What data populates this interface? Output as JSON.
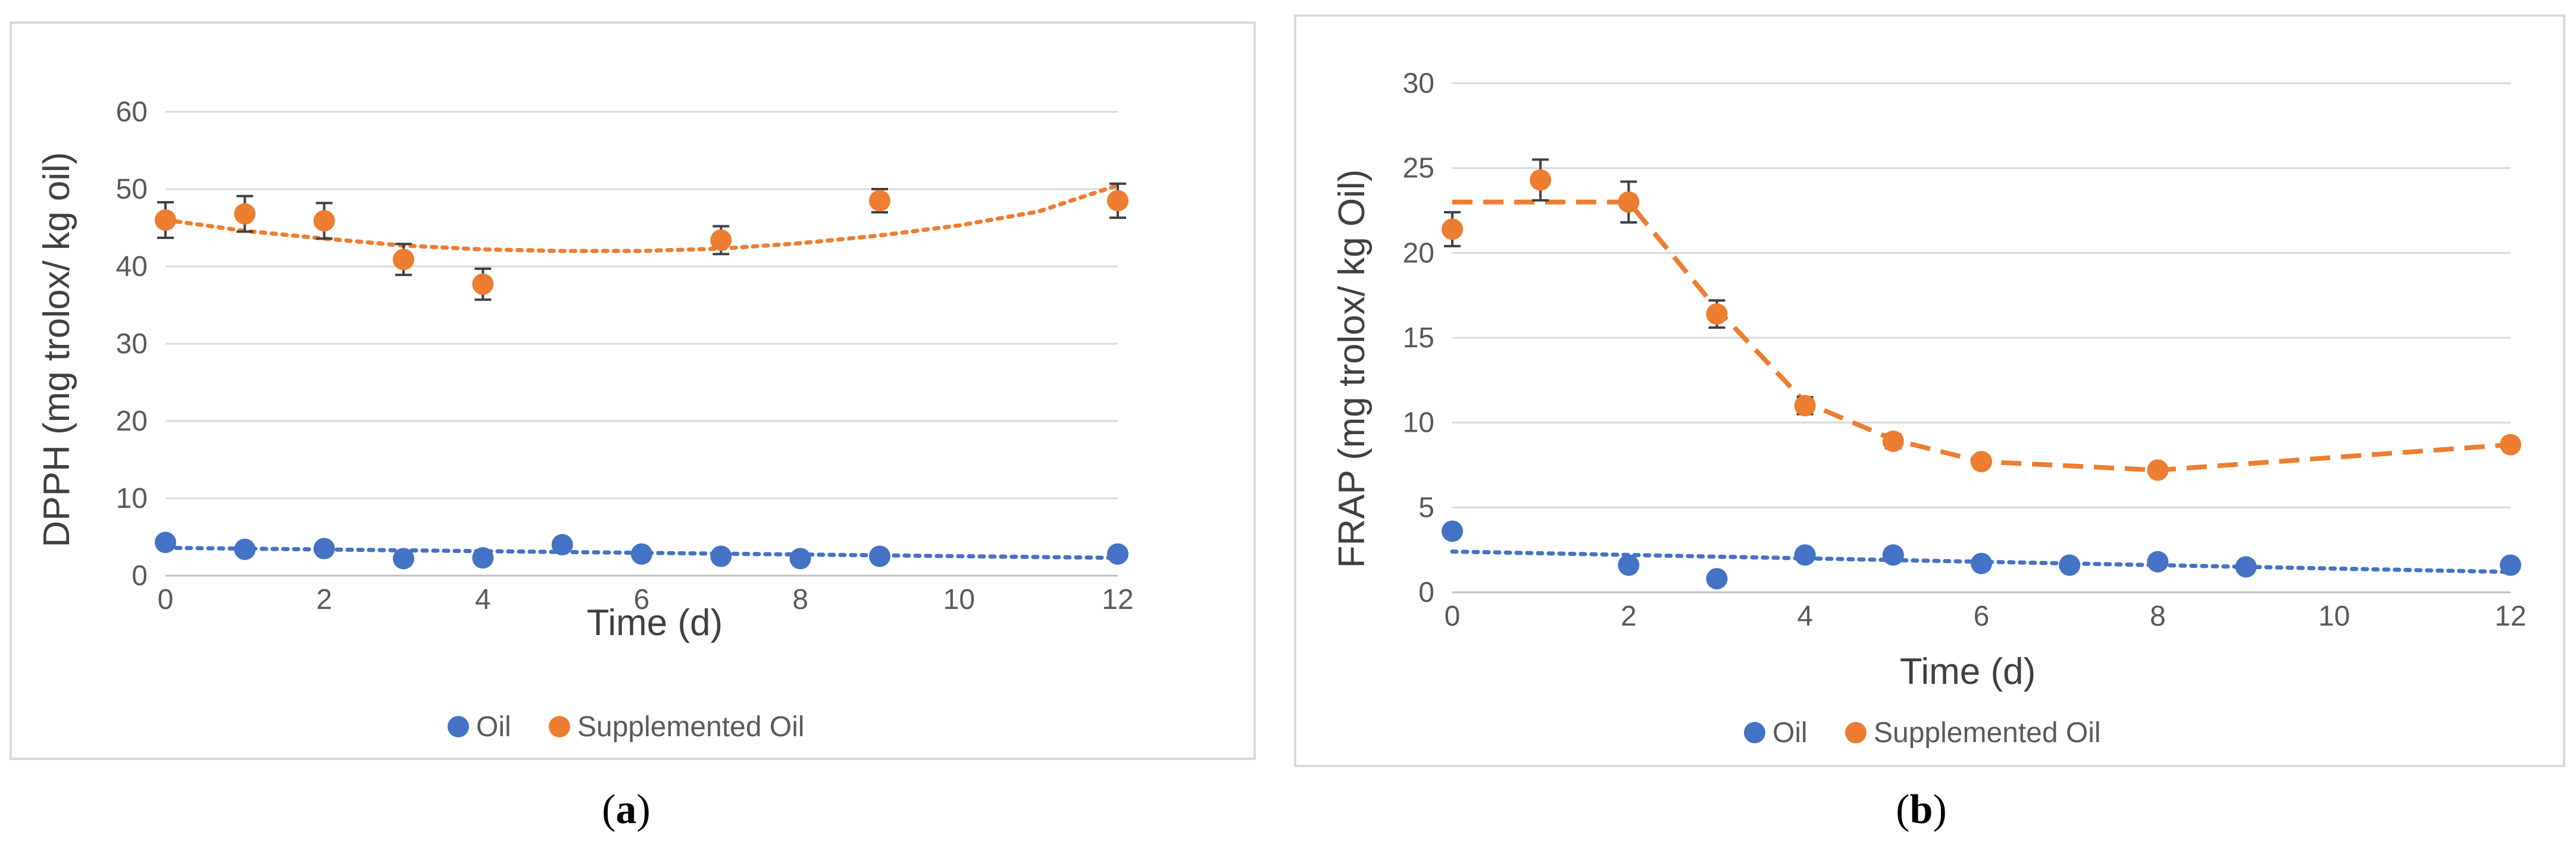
{
  "chart_data": [
    {
      "panel_label": "a",
      "type": "scatter",
      "xlabel": "Time (d)",
      "ylabel": "DPPH (mg trolox/ kg  oil)",
      "xlim": [
        0,
        12
      ],
      "ylim": [
        0,
        60
      ],
      "xticks": [
        "0",
        "2",
        "4",
        "6",
        "8",
        "10",
        "12"
      ],
      "yticks": [
        "0",
        "10",
        "20",
        "30",
        "40",
        "50",
        "60"
      ],
      "legend": [
        "Oil",
        "Supplemented Oil"
      ],
      "series": [
        {
          "name": "Oil",
          "color": "#4472C4",
          "x": [
            0,
            1,
            2,
            3,
            4,
            5,
            6,
            7,
            8,
            9,
            12
          ],
          "y": [
            4.3,
            3.4,
            3.5,
            2.2,
            2.3,
            4.0,
            2.8,
            2.5,
            2.2,
            2.5,
            2.8
          ],
          "trendline": {
            "style": "dotted",
            "x": [
              0,
              12
            ],
            "y": [
              3.6,
              2.3
            ]
          }
        },
        {
          "name": "Supplemented Oil",
          "color": "#ED7D31",
          "x": [
            0,
            1,
            2,
            3,
            4,
            7,
            9,
            12
          ],
          "y": [
            46.0,
            46.8,
            45.9,
            40.9,
            37.7,
            43.4,
            48.5,
            48.5
          ],
          "error": [
            2.3,
            2.3,
            2.3,
            2.0,
            2.0,
            1.8,
            1.5,
            2.2
          ],
          "trendline": {
            "style": "dotted",
            "x": [
              0,
              1,
              2,
              3,
              4,
              5,
              6,
              7,
              8,
              9,
              10,
              11,
              12
            ],
            "y": [
              46.0,
              44.6,
              43.6,
              42.7,
              42.2,
              42.0,
              42.0,
              42.3,
              43.0,
              44.0,
              45.3,
              47.1,
              50.5
            ]
          }
        }
      ]
    },
    {
      "panel_label": "b",
      "type": "scatter",
      "xlabel": "Time (d)",
      "ylabel": "FRAP (mg trolox/ kg Oil)",
      "xlim": [
        0,
        12
      ],
      "ylim": [
        0,
        30
      ],
      "xticks": [
        "0",
        "2",
        "4",
        "6",
        "8",
        "10",
        "12"
      ],
      "yticks": [
        "0",
        "5",
        "10",
        "15",
        "20",
        "25",
        "30"
      ],
      "legend": [
        "Oil",
        "Supplemented Oil"
      ],
      "series": [
        {
          "name": "Oil",
          "color": "#4472C4",
          "x": [
            0,
            2,
            3,
            4,
            5,
            6,
            7,
            8,
            9,
            12
          ],
          "y": [
            3.6,
            1.6,
            0.8,
            2.2,
            2.2,
            1.7,
            1.6,
            1.8,
            1.5,
            1.6
          ],
          "trendline": {
            "style": "dotted",
            "x": [
              0,
              12
            ],
            "y": [
              2.4,
              1.2
            ]
          }
        },
        {
          "name": "Supplemented Oil",
          "color": "#ED7D31",
          "x": [
            0,
            1,
            2,
            3,
            4,
            5,
            6,
            8,
            12
          ],
          "y": [
            21.4,
            24.3,
            23.0,
            16.4,
            11.0,
            8.9,
            7.7,
            7.2,
            8.7
          ],
          "error": [
            1.0,
            1.2,
            1.2,
            0.8,
            0.5,
            0.4,
            0.3,
            0.3,
            0.3
          ],
          "trendline": {
            "style": "dashed",
            "x": [
              0,
              2,
              3,
              4,
              5,
              6,
              8,
              12
            ],
            "y": [
              23.0,
              23.0,
              16.7,
              11.2,
              9.0,
              7.7,
              7.2,
              8.7
            ]
          }
        }
      ]
    }
  ]
}
